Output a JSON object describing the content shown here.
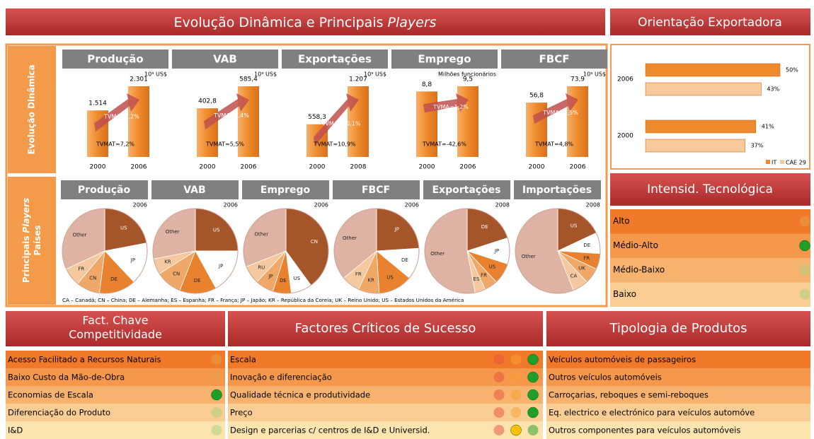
{
  "header": {
    "title": "Evolução Dinâmica e Principais",
    "title_italic": "Players",
    "right_title": "Orientação Exportadora",
    "side_top": "Evolução Dinâmica",
    "side_bottom": [
      "Principais",
      "Players",
      "Países"
    ]
  },
  "chart_data": [
    {
      "type": "bar",
      "title": "Produção",
      "unit": "10⁹ US$",
      "categories": [
        "2000",
        "2006"
      ],
      "values": [
        1514,
        2301
      ],
      "value_labels": [
        "1.514",
        "2.301"
      ],
      "cagr": "TVMA=7,2%",
      "cagr_total": "TVMAT=7,2%",
      "color": "#f0913a"
    },
    {
      "type": "bar",
      "title": "VAB",
      "unit": "10⁹ US$",
      "categories": [
        "2000",
        "2006"
      ],
      "values": [
        402.8,
        585.4
      ],
      "value_labels": [
        "402,8",
        "585,4"
      ],
      "cagr": "TVMA=6,4%",
      "cagr_total": "TVMAT=5,5%",
      "color": "#f0913a"
    },
    {
      "type": "bar",
      "title": "Exportações",
      "unit": "10⁹ US$",
      "categories": [
        "2000",
        "2008"
      ],
      "values": [
        558.3,
        1207
      ],
      "value_labels": [
        "558,3",
        "1.207"
      ],
      "cagr": "TVMA=10,1%",
      "cagr_total": "TVMAT=10,9%",
      "color": "#f0913a"
    },
    {
      "type": "bar",
      "title": "Emprego",
      "unit": "Milhões funcionários",
      "categories": [
        "2000",
        "2006"
      ],
      "values": [
        8.8,
        9.5
      ],
      "value_labels": [
        "8,8",
        "9,5"
      ],
      "cagr": "TVMA=1,2%",
      "cagr_total": "TVMAT=-42,6%",
      "color": "#f0913a"
    },
    {
      "type": "bar",
      "title": "FBCF",
      "unit": "10⁹ US$",
      "categories": [
        "2000",
        "2006"
      ],
      "values": [
        56.8,
        73.9
      ],
      "value_labels": [
        "56,8",
        "73,9"
      ],
      "cagr": "TVMA=4,5%",
      "cagr_total": "TVMAT=4,8%",
      "color": "#f0913a"
    },
    {
      "type": "pie",
      "title": "Produção",
      "year": "2006",
      "categories": [
        "US",
        "JP",
        "DE",
        "CN",
        "FR",
        "Other"
      ],
      "values": [
        22,
        16,
        14,
        9,
        7,
        32
      ],
      "colors": [
        "#a5552a",
        "#ffffff",
        "#e8822e",
        "#f0a868",
        "#f6c8a0",
        "#dfb3a3"
      ]
    },
    {
      "type": "pie",
      "title": "VAB",
      "year": "2006",
      "categories": [
        "US",
        "JP",
        "DE",
        "CN",
        "KR",
        "Other"
      ],
      "values": [
        25,
        17,
        14,
        10,
        6,
        28
      ],
      "colors": [
        "#a5552a",
        "#ffffff",
        "#e8822e",
        "#f0a868",
        "#f6c8a0",
        "#dfb3a3"
      ]
    },
    {
      "type": "pie",
      "title": "Emprego",
      "year": "2006",
      "categories": [
        "CN",
        "US",
        "DE",
        "JP",
        "RU",
        "Other"
      ],
      "values": [
        40,
        8,
        7,
        7,
        7,
        31
      ],
      "colors": [
        "#a5552a",
        "#ffffff",
        "#e8822e",
        "#f0a868",
        "#f6c8a0",
        "#dfb3a3"
      ]
    },
    {
      "type": "pie",
      "title": "FBCF",
      "year": "2006",
      "categories": [
        "JP",
        "DE",
        "US",
        "KR",
        "FR",
        "Other"
      ],
      "values": [
        24,
        12,
        13,
        8,
        7,
        36
      ],
      "colors": [
        "#a5552a",
        "#ffffff",
        "#e8822e",
        "#f0a868",
        "#f6c8a0",
        "#dfb3a3"
      ]
    },
    {
      "type": "pie",
      "title": "Exportações",
      "year": "2008",
      "categories": [
        "DE",
        "JP",
        "US",
        "FR",
        "ES",
        "Other"
      ],
      "values": [
        20,
        10,
        8,
        5,
        4,
        53
      ],
      "colors": [
        "#a5552a",
        "#ffffff",
        "#e8822e",
        "#f0a868",
        "#f6c8a0",
        "#dfb3a3"
      ]
    },
    {
      "type": "pie",
      "title": "Importações",
      "year": "2008",
      "categories": [
        "US",
        "DE",
        "FR",
        "UK",
        "CA",
        "Other"
      ],
      "values": [
        18,
        8,
        6,
        6,
        6,
        56
      ],
      "colors": [
        "#a5552a",
        "#ffffff",
        "#e8822e",
        "#f0a868",
        "#f6c8a0",
        "#dfb3a3"
      ]
    },
    {
      "type": "hbar",
      "categories": [
        "2006",
        "2000"
      ],
      "series": [
        {
          "name": "IT",
          "color": "#ef8a2c",
          "values": [
            50,
            41
          ],
          "value_labels": [
            "50%",
            "41%"
          ]
        },
        {
          "name": "CAE 29",
          "color": "#f8c99a",
          "values": [
            43,
            37
          ],
          "value_labels": [
            "43%",
            "37%"
          ]
        }
      ]
    }
  ],
  "footnote": "CA – Canadá;  CN – China;  DE – Alemanha;  ES – Espanha;  FR – França;  JP – Japão;  KR – República da Coreia;  UK – Reino Unido;  US – Estados Unidos da América",
  "intensity": {
    "title": "Intensid. Tecnológica",
    "rows": [
      {
        "label": "Alto",
        "indicator": "#e8a04a",
        "active": false
      },
      {
        "label": "Médio-Alto",
        "indicator": "#1f9e2a",
        "active": true
      },
      {
        "label": "Médio-Baixo",
        "indicator": "#a7cf7c",
        "active": false
      },
      {
        "label": "Baixo",
        "indicator": "#a7cf7c",
        "active": false
      }
    ]
  },
  "factors": {
    "title": [
      "Fact. Chave",
      "Competitividade"
    ],
    "rows": [
      {
        "label": "Acesso Facilitado a Recursos Naturais",
        "indicator": "#e8a04a",
        "active": false
      },
      {
        "label": "Baixo Custo da Mão-de-Obra",
        "indicator": "#e8a04a",
        "active": false
      },
      {
        "label": "Economias de Escala",
        "indicator": "#1f9e2a",
        "active": true
      },
      {
        "label": "Diferenciação do Produto",
        "indicator": "#a7cf7c",
        "active": false
      },
      {
        "label": "I&D",
        "indicator": "#a7cf7c",
        "active": false
      }
    ]
  },
  "critical": {
    "title": "Factores Críticos de Sucesso",
    "scale": [
      "#e8503a",
      "#f5a030",
      "#1f9e2a"
    ],
    "rows": [
      {
        "label": "Escala",
        "rating": 2
      },
      {
        "label": "Inovação e diferenciação",
        "rating": 2
      },
      {
        "label": "Qualidade técnica e produtividade",
        "rating": 2
      },
      {
        "label": "Preço",
        "rating": 2
      },
      {
        "label": "Design e parcerias c/ centros de I&D e Universid.",
        "rating": 1
      }
    ]
  },
  "products": {
    "title": "Tipologia de Produtos",
    "rows": [
      "Veículos automóveis de passageiros",
      "Outros veículos automóveis",
      "Carroçarias, reboques e semi-reboques",
      "Eq. electrico e electrónico para veículos automóve",
      "Outros componentes para veículos automóveis"
    ]
  },
  "row_colors": [
    "#f07a2a",
    "#f5984c",
    "#f7b26e",
    "#f9cd93",
    "#fbe4ad"
  ]
}
